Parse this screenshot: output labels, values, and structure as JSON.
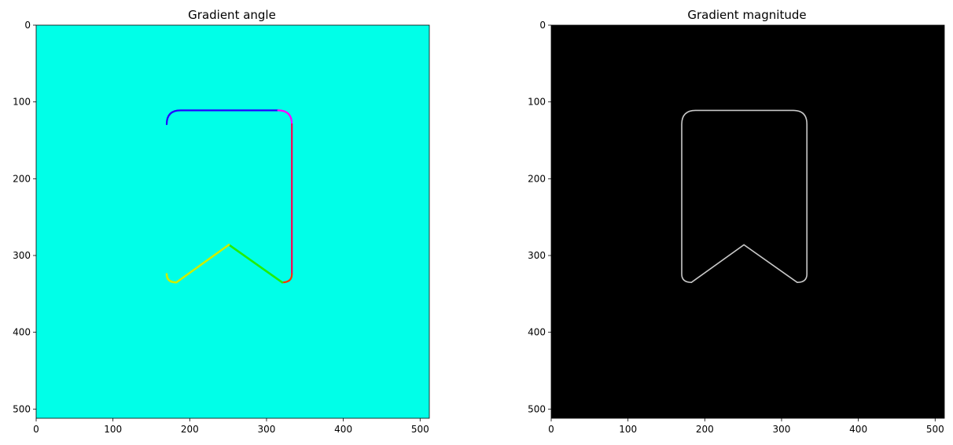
{
  "chart_data": [
    {
      "type": "image",
      "title": "Gradient angle",
      "xlim": [
        0,
        512
      ],
      "ylim": [
        512,
        0
      ],
      "xticks": [
        0,
        100,
        200,
        300,
        400,
        500
      ],
      "yticks": [
        0,
        100,
        200,
        300,
        400,
        500
      ],
      "background_color": "#00FFE8",
      "outline": {
        "top_y": 111,
        "left_x": 170,
        "right_x": 333,
        "corner_bottom_y": 335,
        "notch_x": 251,
        "notch_y": 286,
        "corner_radius": 18
      },
      "edge_colors": {
        "top": "#2200FF",
        "top_right_corner": "#FF00FF",
        "right": "#FF0050",
        "notch_left": "#CCEE00",
        "notch_right": "#22EE00",
        "bottom_right_corner": "#FF3300"
      }
    },
    {
      "type": "image",
      "title": "Gradient magnitude",
      "xlim": [
        0,
        512
      ],
      "ylim": [
        512,
        0
      ],
      "xticks": [
        0,
        100,
        200,
        300,
        400,
        500
      ],
      "yticks": [
        0,
        100,
        200,
        300,
        400,
        500
      ],
      "background_color": "#000000",
      "outline_color": "#C8C8C8",
      "outline": {
        "top_y": 111,
        "left_x": 170,
        "right_x": 333,
        "corner_bottom_y": 335,
        "notch_x": 251,
        "notch_y": 286,
        "corner_radius": 18
      }
    }
  ]
}
